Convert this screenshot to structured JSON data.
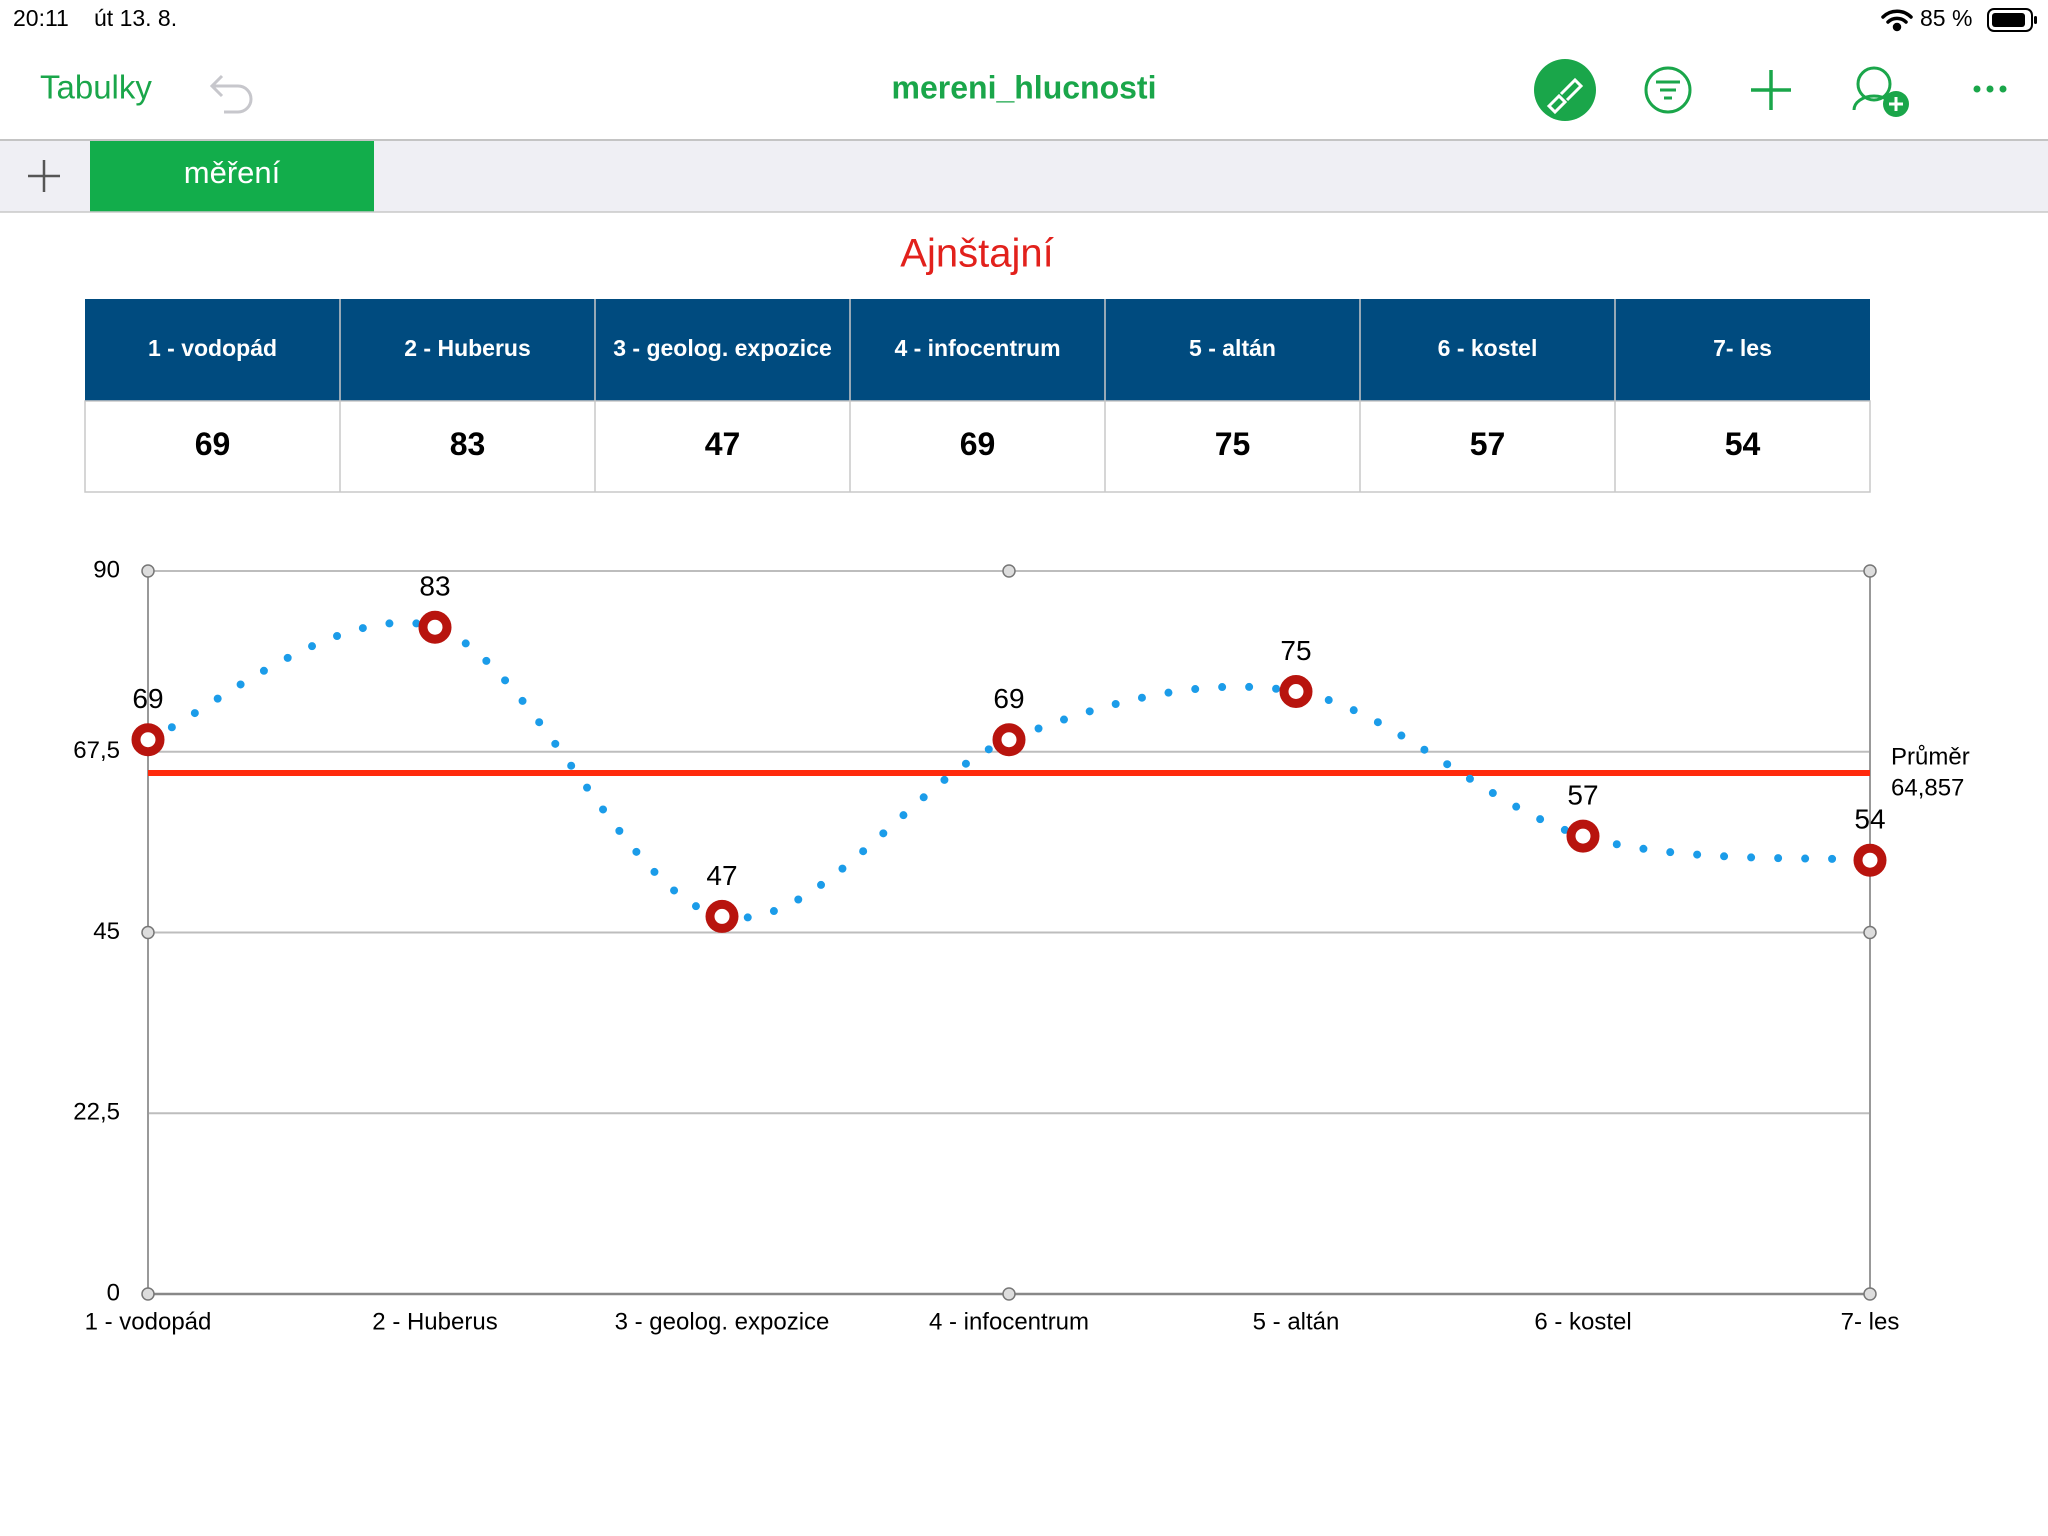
{
  "status": {
    "time": "20:11",
    "date": "út 13. 8.",
    "battery": "85 %"
  },
  "toolbar": {
    "back": "Tabulky",
    "title": "mereni_hlucnosti"
  },
  "tabs": [
    "měření"
  ],
  "sheet": {
    "title": "Ajnštajní",
    "table": {
      "header": [
        "1 - vodopád",
        "2 - Huberus",
        "3 - geolog. expozice",
        "4 - infocentrum",
        "5 - altán",
        "6 - kostel",
        "7- les"
      ],
      "rows": [
        [
          69,
          83,
          47,
          69,
          75,
          57,
          54
        ]
      ]
    }
  },
  "chart_data": {
    "type": "line",
    "categories": [
      "1 - vodopád",
      "2 - Huberus",
      "3 - geolog. expozice",
      "4 - infocentrum",
      "5 - altán",
      "6 - kostel",
      "7- les"
    ],
    "values": [
      69,
      83,
      47,
      69,
      75,
      57,
      54
    ],
    "color": "#1b9ce9",
    "marker_color": "#b8140e",
    "ylim": [
      0,
      90
    ],
    "yticks": [
      0,
      {
        "value": 22.5,
        "label": "22,5"
      },
      45,
      {
        "value": 67.5,
        "label": "67,5"
      },
      90
    ],
    "grid": true,
    "average": {
      "name": "Průměr",
      "value": 64.857,
      "label": "64,857",
      "color": "#ff2a0c"
    }
  }
}
